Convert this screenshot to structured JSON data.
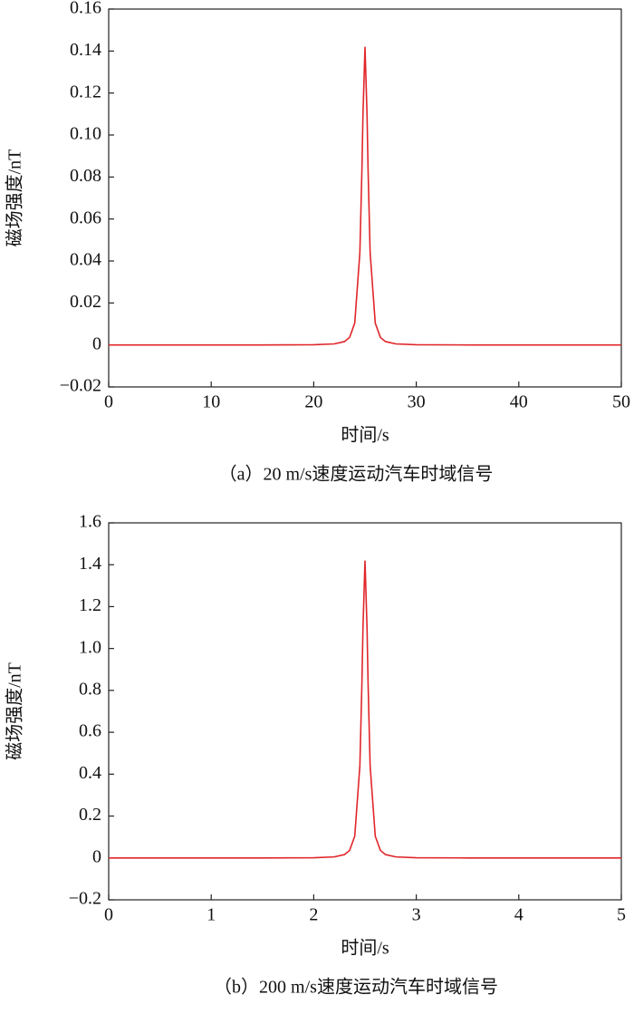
{
  "chart_data": [
    {
      "type": "line",
      "xlabel": "时间/s",
      "ylabel": "磁场强度/nT",
      "caption": "（a）20 m/s速度运动汽车时域信号",
      "x": [
        0,
        5,
        10,
        15,
        20,
        22,
        23,
        23.5,
        24,
        24.5,
        24.7,
        24.8,
        25,
        25.2,
        25.3,
        25.5,
        26,
        26.5,
        27,
        28,
        30,
        35,
        40,
        45,
        50
      ],
      "series": [
        {
          "color": "#e0262a",
          "values": [
            0,
            0,
            0,
            0,
            0.0001,
            0.0005,
            0.0016,
            0.0036,
            0.0104,
            0.044,
            0.0835,
            0.1095,
            0.142,
            0.1095,
            0.0835,
            0.044,
            0.0104,
            0.0036,
            0.0016,
            0.0005,
            0.0001,
            0,
            0,
            0,
            0
          ]
        }
      ],
      "xlim": [
        0,
        50
      ],
      "xticks": [
        0,
        10,
        20,
        30,
        40,
        50
      ],
      "ylim": [
        -0.02,
        0.16
      ],
      "yticks": [
        {
          "value": -0.02,
          "label": "−0.02"
        },
        0,
        0.02,
        0.04,
        0.06,
        0.08,
        {
          "value": 0.1,
          "label": "0.10"
        },
        0.12,
        0.14,
        0.16
      ]
    },
    {
      "type": "line",
      "xlabel": "时间/s",
      "ylabel": "磁场强度/nT",
      "caption": "（b）200 m/s速度运动汽车时域信号",
      "x": [
        0,
        0.5,
        1,
        1.5,
        2,
        2.2,
        2.3,
        2.35,
        2.4,
        2.45,
        2.47,
        2.48,
        2.5,
        2.52,
        2.53,
        2.55,
        2.6,
        2.65,
        2.7,
        2.8,
        3,
        3.5,
        4,
        4.5,
        5
      ],
      "series": [
        {
          "color": "#e0262a",
          "values": [
            0,
            0,
            0,
            0,
            0.001,
            0.005,
            0.016,
            0.036,
            0.104,
            0.44,
            0.835,
            1.095,
            1.42,
            1.095,
            0.835,
            0.44,
            0.104,
            0.036,
            0.016,
            0.005,
            0.001,
            0,
            0,
            0,
            0
          ]
        }
      ],
      "xlim": [
        0,
        5
      ],
      "xticks": [
        0,
        1,
        2,
        3,
        4,
        5
      ],
      "ylim": [
        -0.2,
        1.6
      ],
      "yticks": [
        {
          "value": -0.2,
          "label": "−0.2"
        },
        0,
        0.2,
        0.4,
        0.6,
        0.8,
        {
          "value": 1,
          "label": "1.0"
        },
        1.2,
        1.4,
        1.6
      ]
    }
  ]
}
